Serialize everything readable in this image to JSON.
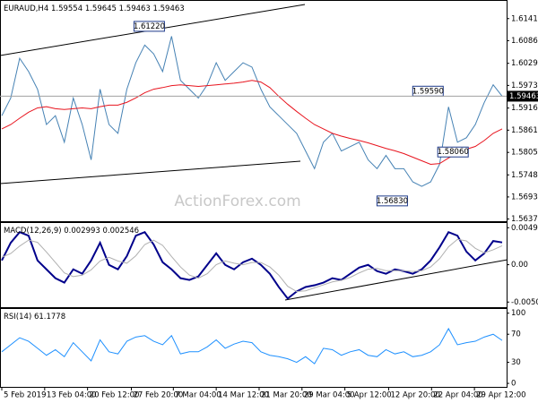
{
  "chart_data": [
    {
      "type": "line",
      "title": "EURAUD,H4",
      "ohlc": [
        1.59554,
        1.59645,
        1.59463,
        1.59463
      ],
      "watermark": "ActionForex.com",
      "xlim": [
        0,
        56
      ],
      "ylim": [
        1.5632,
        1.6186
      ],
      "yticks": [
        1.61415,
        {
          "value": 1.6086,
          "label": "1.60860"
        },
        {
          "value": 1.6029,
          "label": "1.60290"
        },
        1.59735,
        1.59165,
        {
          "value": 1.5861,
          "label": "1.58610"
        },
        {
          "value": 1.5805,
          "label": "1.58050"
        },
        1.57485,
        {
          "value": 1.5693,
          "label": "1.56930"
        },
        1.56375
      ],
      "series": [
        {
          "name": "EURAUD",
          "color": "#4682b4",
          "values": [
            1.58973,
            1.59417,
            1.60416,
            1.60083,
            1.59639,
            1.58751,
            1.58973,
            1.58307,
            1.59417,
            1.58751,
            1.57863,
            1.59639,
            1.58751,
            1.58529,
            1.59639,
            1.60305,
            1.60749,
            1.60527,
            1.60083,
            1.60971,
            1.59861,
            1.59639,
            1.59417,
            1.5975,
            1.60305,
            1.59861,
            1.60083,
            1.60305,
            1.60194,
            1.59639,
            1.59195,
            1.58973,
            1.58751,
            1.58529,
            1.58085,
            1.57641,
            1.58307,
            1.58529,
            1.58085,
            1.58196,
            1.58307,
            1.57863,
            1.57641,
            1.57974,
            1.57641,
            1.57641,
            1.57308,
            1.57197,
            1.57308,
            1.57752,
            1.59195,
            1.58307,
            1.58418,
            1.58751,
            1.59306,
            1.5975,
            1.59463
          ]
        },
        {
          "name": "MA",
          "color": "#e8141e",
          "values": [
            1.5864,
            1.5875,
            1.5891,
            1.5906,
            1.5917,
            1.592,
            1.5915,
            1.5913,
            1.5915,
            1.5917,
            1.5915,
            1.592,
            1.5924,
            1.5924,
            1.5931,
            1.5942,
            1.5955,
            1.5964,
            1.5968,
            1.5973,
            1.5975,
            1.5973,
            1.5971,
            1.5973,
            1.5975,
            1.5977,
            1.5979,
            1.5982,
            1.5986,
            1.5982,
            1.5968,
            1.5946,
            1.5926,
            1.5908,
            1.5891,
            1.5875,
            1.5864,
            1.5853,
            1.5846,
            1.584,
            1.5835,
            1.5829,
            1.5822,
            1.5815,
            1.5809,
            1.5802,
            1.5793,
            1.5784,
            1.5775,
            1.5777,
            1.5791,
            1.5804,
            1.5813,
            1.582,
            1.5835,
            1.5853,
            1.5864
          ]
        }
      ],
      "annotations": [
        {
          "x": 16.5,
          "value": 1.6122,
          "label": "1.61220"
        },
        {
          "x": 47.7,
          "value": 1.5959,
          "label": "1.59590"
        },
        {
          "x": 50.5,
          "value": 1.5806,
          "label": "1.58060"
        },
        {
          "x": 43.7,
          "value": 1.5683,
          "label": "1.56830"
        }
      ]
    },
    {
      "type": "line",
      "title": "MACD(12,26,9)",
      "xlim": [
        0,
        56
      ],
      "ylim": [
        -0.0057,
        0.0056
      ],
      "yticks": [
        0.004965,
        {
          "value": 0,
          "label": "0.00"
        },
        -0.005013
      ],
      "series": [
        {
          "name": "MACD",
          "color": "#00008b",
          "values": [
            0.00057,
            0.00295,
            0.00437,
            0.0039,
            0.00057,
            -0.00062,
            -0.00181,
            -0.0024,
            -0.00062,
            -0.00121,
            0.00057,
            0.00295,
            -2e-05,
            -0.00062,
            0.00116,
            0.0039,
            0.00437,
            0.00271,
            0.00033,
            -0.00062,
            -0.00181,
            -0.00204,
            -0.00157,
            -2e-05,
            0.00152,
            -2e-05,
            -0.00062,
            0.00033,
            0.00081,
            -2e-05,
            -0.00121,
            -0.00299,
            -0.00454,
            -0.00359,
            -0.00299,
            -0.00276,
            -0.0024,
            -0.00181,
            -0.00204,
            -0.00121,
            -0.00038,
            -2e-05,
            -0.00086,
            -0.00121,
            -0.00062,
            -0.00086,
            -0.00121,
            -0.00062,
            0.00057,
            0.00235,
            0.00437,
            0.0039,
            0.00176,
            0.00057,
            0.00152,
            0.00318,
            0.002993
          ]
        },
        {
          "name": "Signal",
          "color": "#b0b0b0",
          "values": [
            0.001,
            0.0015,
            0.0025,
            0.0033,
            0.003,
            0.0017,
            0.0003,
            -0.0011,
            -0.0016,
            -0.0014,
            -0.0007,
            0.0005,
            0.001,
            0.0005,
            0.0002,
            0.0012,
            0.0027,
            0.0033,
            0.0026,
            0.0011,
            -0.0003,
            -0.0014,
            -0.0018,
            -0.0012,
            0,
            0.0005,
            0.0002,
            0,
            0.0003,
            0.0003,
            -0.0003,
            -0.0014,
            -0.0029,
            -0.0036,
            -0.0035,
            -0.0031,
            -0.0027,
            -0.0023,
            -0.0021,
            -0.0017,
            -0.0011,
            -0.0006,
            -0.0005,
            -0.0008,
            -0.0008,
            -0.0008,
            -0.0009,
            -0.0008,
            -0.0003,
            0.0008,
            0.0024,
            0.0034,
            0.0032,
            0.0022,
            0.0016,
            0.002,
            0.002546
          ]
        }
      ]
    },
    {
      "type": "line",
      "title": "RSI(14)",
      "xlim": [
        0,
        56
      ],
      "ylim": [
        -5,
        106
      ],
      "yticks": [
        100,
        70,
        30,
        0
      ],
      "xticks": [
        {
          "value": 0,
          "label": "5 Feb 2019"
        },
        {
          "value": 4.8,
          "label": "13 Feb 04:00"
        },
        {
          "value": 9.6,
          "label": "20 Feb 12:00"
        },
        {
          "value": 14.5,
          "label": "27 Feb 20:00"
        },
        {
          "value": 19.2,
          "label": "7 Mar 04:00"
        },
        {
          "value": 24,
          "label": "14 Mar 12:00"
        },
        {
          "value": 28.8,
          "label": "21 Mar 20:00"
        },
        {
          "value": 33.6,
          "label": "29 Mar 04:00"
        },
        {
          "value": 38.4,
          "label": "5 Apr 12:00"
        },
        {
          "value": 43.3,
          "label": "12 Apr 20:00"
        },
        {
          "value": 48.1,
          "label": "22 Apr 04:00"
        },
        {
          "value": 52.9,
          "label": "29 Apr 12:00"
        }
      ],
      "series": [
        {
          "name": "RSI",
          "color": "#1e90ff",
          "values": [
            45,
            55,
            65,
            60,
            50,
            40,
            48,
            38,
            58,
            45,
            32,
            62,
            45,
            42,
            60,
            66,
            68,
            60,
            55,
            68,
            42,
            45,
            45,
            52,
            62,
            50,
            56,
            60,
            58,
            45,
            40,
            38,
            35,
            30,
            38,
            28,
            50,
            48,
            40,
            45,
            48,
            40,
            38,
            48,
            42,
            45,
            38,
            40,
            45,
            55,
            78,
            55,
            58,
            60,
            66,
            70,
            61.1778
          ]
        }
      ]
    }
  ]
}
